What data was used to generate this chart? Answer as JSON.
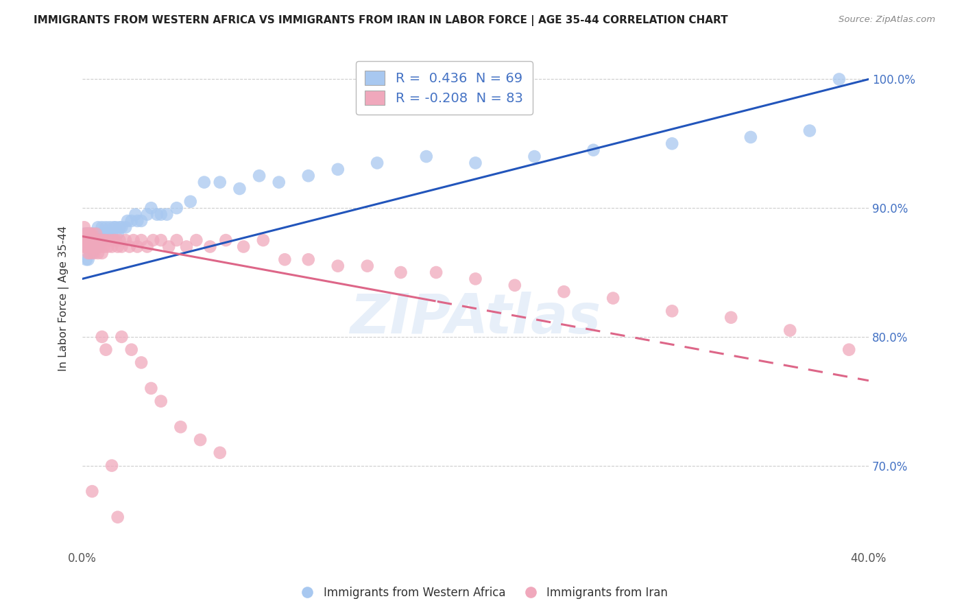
{
  "title": "IMMIGRANTS FROM WESTERN AFRICA VS IMMIGRANTS FROM IRAN IN LABOR FORCE | AGE 35-44 CORRELATION CHART",
  "source": "Source: ZipAtlas.com",
  "xlabel": "",
  "ylabel": "In Labor Force | Age 35-44",
  "xlim": [
    0.0,
    0.4
  ],
  "ylim": [
    0.635,
    1.025
  ],
  "xticks": [
    0.0,
    0.05,
    0.1,
    0.15,
    0.2,
    0.25,
    0.3,
    0.35,
    0.4
  ],
  "xtick_labels": [
    "0.0%",
    "",
    "",
    "",
    "",
    "",
    "",
    "",
    "40.0%"
  ],
  "yticks": [
    0.7,
    0.8,
    0.9,
    1.0
  ],
  "ytick_labels": [
    "70.0%",
    "80.0%",
    "90.0%",
    "100.0%"
  ],
  "blue_color": "#a8c8f0",
  "pink_color": "#f0a8bc",
  "blue_line_color": "#2255bb",
  "pink_line_color": "#dd6688",
  "R_blue": 0.436,
  "N_blue": 69,
  "R_pink": -0.208,
  "N_pink": 83,
  "legend_color": "#4472c4",
  "watermark": "ZIPAtlas",
  "blue_points_x": [
    0.001,
    0.001,
    0.002,
    0.002,
    0.002,
    0.003,
    0.003,
    0.003,
    0.004,
    0.004,
    0.004,
    0.004,
    0.005,
    0.005,
    0.005,
    0.005,
    0.006,
    0.006,
    0.006,
    0.007,
    0.007,
    0.007,
    0.008,
    0.008,
    0.008,
    0.009,
    0.009,
    0.01,
    0.01,
    0.011,
    0.012,
    0.012,
    0.013,
    0.014,
    0.015,
    0.016,
    0.017,
    0.018,
    0.019,
    0.02,
    0.022,
    0.023,
    0.025,
    0.027,
    0.028,
    0.03,
    0.033,
    0.035,
    0.038,
    0.04,
    0.043,
    0.048,
    0.055,
    0.062,
    0.07,
    0.08,
    0.09,
    0.1,
    0.115,
    0.13,
    0.15,
    0.175,
    0.2,
    0.23,
    0.26,
    0.3,
    0.34,
    0.37,
    0.385
  ],
  "blue_points_y": [
    0.87,
    0.88,
    0.86,
    0.88,
    0.875,
    0.875,
    0.88,
    0.86,
    0.87,
    0.875,
    0.88,
    0.865,
    0.87,
    0.88,
    0.875,
    0.865,
    0.875,
    0.88,
    0.87,
    0.875,
    0.88,
    0.87,
    0.875,
    0.885,
    0.87,
    0.875,
    0.88,
    0.875,
    0.885,
    0.88,
    0.88,
    0.885,
    0.88,
    0.885,
    0.88,
    0.885,
    0.885,
    0.88,
    0.885,
    0.885,
    0.885,
    0.89,
    0.89,
    0.895,
    0.89,
    0.89,
    0.895,
    0.9,
    0.895,
    0.895,
    0.895,
    0.9,
    0.905,
    0.92,
    0.92,
    0.915,
    0.925,
    0.92,
    0.925,
    0.93,
    0.935,
    0.94,
    0.935,
    0.94,
    0.945,
    0.95,
    0.955,
    0.96,
    1.0
  ],
  "pink_points_x": [
    0.001,
    0.001,
    0.001,
    0.002,
    0.002,
    0.002,
    0.003,
    0.003,
    0.003,
    0.004,
    0.004,
    0.004,
    0.004,
    0.005,
    0.005,
    0.005,
    0.006,
    0.006,
    0.006,
    0.007,
    0.007,
    0.007,
    0.008,
    0.008,
    0.008,
    0.009,
    0.009,
    0.01,
    0.01,
    0.011,
    0.011,
    0.012,
    0.013,
    0.014,
    0.015,
    0.016,
    0.017,
    0.018,
    0.019,
    0.02,
    0.022,
    0.024,
    0.026,
    0.028,
    0.03,
    0.033,
    0.036,
    0.04,
    0.044,
    0.048,
    0.053,
    0.058,
    0.065,
    0.073,
    0.082,
    0.092,
    0.103,
    0.115,
    0.13,
    0.145,
    0.162,
    0.18,
    0.2,
    0.22,
    0.245,
    0.27,
    0.3,
    0.33,
    0.36,
    0.39,
    0.01,
    0.012,
    0.02,
    0.025,
    0.03,
    0.035,
    0.04,
    0.05,
    0.06,
    0.07,
    0.005,
    0.015,
    0.018
  ],
  "pink_points_y": [
    0.875,
    0.87,
    0.885,
    0.875,
    0.87,
    0.88,
    0.875,
    0.865,
    0.88,
    0.875,
    0.87,
    0.88,
    0.865,
    0.875,
    0.87,
    0.88,
    0.87,
    0.875,
    0.865,
    0.875,
    0.87,
    0.88,
    0.87,
    0.875,
    0.865,
    0.875,
    0.87,
    0.875,
    0.865,
    0.875,
    0.87,
    0.875,
    0.87,
    0.875,
    0.87,
    0.875,
    0.875,
    0.87,
    0.875,
    0.87,
    0.875,
    0.87,
    0.875,
    0.87,
    0.875,
    0.87,
    0.875,
    0.875,
    0.87,
    0.875,
    0.87,
    0.875,
    0.87,
    0.875,
    0.87,
    0.875,
    0.86,
    0.86,
    0.855,
    0.855,
    0.85,
    0.85,
    0.845,
    0.84,
    0.835,
    0.83,
    0.82,
    0.815,
    0.805,
    0.79,
    0.8,
    0.79,
    0.8,
    0.79,
    0.78,
    0.76,
    0.75,
    0.73,
    0.72,
    0.71,
    0.68,
    0.7,
    0.66
  ]
}
